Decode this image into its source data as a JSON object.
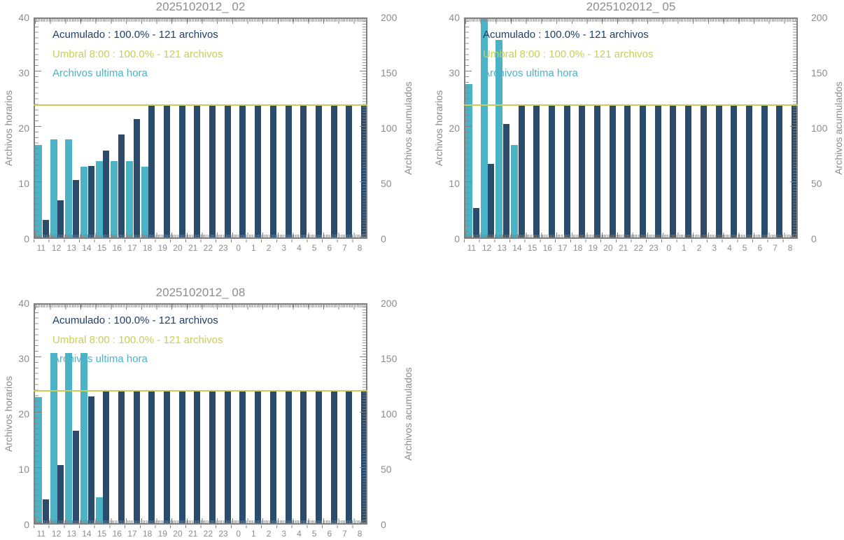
{
  "page": {
    "background": "#ffffff"
  },
  "colors": {
    "hourly_bar": "#4cb3c6",
    "cumulative_bar": "#2b4b6c",
    "legend_cumulative_text": "#1e3e66",
    "threshold": "#c9ce55",
    "axis": "#808080",
    "tick_label": "#8c8c8c",
    "title": "#8e8e8e"
  },
  "chart_data": [
    {
      "type": "bar",
      "title": "2025102012_ 02",
      "categories": [
        "11",
        "12",
        "13",
        "14",
        "15",
        "16",
        "17",
        "18",
        "19",
        "20",
        "21",
        "22",
        "23",
        "0",
        "1",
        "2",
        "3",
        "4",
        "5",
        "6",
        "7",
        "8"
      ],
      "series": [
        {
          "name": "Archivos ultima hora",
          "axis": "left",
          "values": [
            17,
            18,
            18,
            13,
            14,
            14,
            14,
            13,
            0,
            0,
            0,
            0,
            0,
            0,
            0,
            0,
            0,
            0,
            0,
            0,
            0,
            0
          ]
        },
        {
          "name": "Acumulado",
          "axis": "right",
          "values": [
            17,
            35,
            53,
            66,
            80,
            94,
            108,
            121,
            121,
            121,
            121,
            121,
            121,
            121,
            121,
            121,
            121,
            121,
            121,
            121,
            121,
            121
          ]
        }
      ],
      "threshold": {
        "name": "Umbral 8:00",
        "value": 121,
        "axis": "right"
      },
      "legend": [
        "Acumulado : 100.0% - 121 archivos",
        "Umbral 8:00 : 100.0% - 121 archivos",
        "Archivos ultima hora"
      ],
      "ylabel_left": "Archivos horarios",
      "ylabel_right": "Archivos acumulados",
      "ylim_left": [
        0,
        40
      ],
      "ylim_right": [
        0,
        200
      ],
      "y_ticks_left": [
        0,
        10,
        20,
        30,
        40
      ],
      "y_ticks_right": [
        0,
        50,
        100,
        150,
        200
      ],
      "grid": false,
      "legend_position": "top-left"
    },
    {
      "type": "bar",
      "title": "2025102012_ 05",
      "categories": [
        "11",
        "12",
        "13",
        "14",
        "15",
        "16",
        "17",
        "18",
        "19",
        "20",
        "21",
        "22",
        "23",
        "0",
        "1",
        "2",
        "3",
        "4",
        "5",
        "6",
        "7",
        "8"
      ],
      "series": [
        {
          "name": "Archivos ultima hora",
          "axis": "left",
          "values": [
            28,
            40,
            36,
            17,
            0,
            0,
            0,
            0,
            0,
            0,
            0,
            0,
            0,
            0,
            0,
            0,
            0,
            0,
            0,
            0,
            0,
            0
          ]
        },
        {
          "name": "Acumulado",
          "axis": "right",
          "values": [
            28,
            68,
            104,
            121,
            121,
            121,
            121,
            121,
            121,
            121,
            121,
            121,
            121,
            121,
            121,
            121,
            121,
            121,
            121,
            121,
            121,
            121
          ]
        }
      ],
      "threshold": {
        "name": "Umbral 8:00",
        "value": 121,
        "axis": "right"
      },
      "legend": [
        "Acumulado : 100.0% - 121 archivos",
        "Umbral 8:00 : 100.0% - 121 archivos",
        "Archivos ultima hora"
      ],
      "ylabel_left": "Archivos horarios",
      "ylabel_right": "Archivos acumulados",
      "ylim_left": [
        0,
        40
      ],
      "ylim_right": [
        0,
        200
      ],
      "y_ticks_left": [
        0,
        10,
        20,
        30,
        40
      ],
      "y_ticks_right": [
        0,
        50,
        100,
        150,
        200
      ],
      "grid": false,
      "legend_position": "top-left"
    },
    {
      "type": "bar",
      "title": "2025102012_ 08",
      "categories": [
        "11",
        "12",
        "13",
        "14",
        "15",
        "16",
        "17",
        "18",
        "19",
        "20",
        "21",
        "22",
        "23",
        "0",
        "1",
        "2",
        "3",
        "4",
        "5",
        "6",
        "7",
        "8"
      ],
      "series": [
        {
          "name": "Archivos ultima hora",
          "axis": "left",
          "values": [
            23,
            31,
            31,
            31,
            5,
            0,
            0,
            0,
            0,
            0,
            0,
            0,
            0,
            0,
            0,
            0,
            0,
            0,
            0,
            0,
            0,
            0
          ]
        },
        {
          "name": "Acumulado",
          "axis": "right",
          "values": [
            23,
            54,
            85,
            116,
            121,
            121,
            121,
            121,
            121,
            121,
            121,
            121,
            121,
            121,
            121,
            121,
            121,
            121,
            121,
            121,
            121,
            121
          ]
        }
      ],
      "threshold": {
        "name": "Umbral 8:00",
        "value": 121,
        "axis": "right"
      },
      "legend": [
        "Acumulado : 100.0% - 121 archivos",
        "Umbral 8:00 : 100.0% - 121 archivos",
        "Archivos ultima hora"
      ],
      "ylabel_left": "Archivos horarios",
      "ylabel_right": "Archivos acumulados",
      "ylim_left": [
        0,
        40
      ],
      "ylim_right": [
        0,
        200
      ],
      "y_ticks_left": [
        0,
        10,
        20,
        30,
        40
      ],
      "y_ticks_right": [
        0,
        50,
        100,
        150,
        200
      ],
      "grid": false,
      "legend_position": "top-left"
    }
  ]
}
